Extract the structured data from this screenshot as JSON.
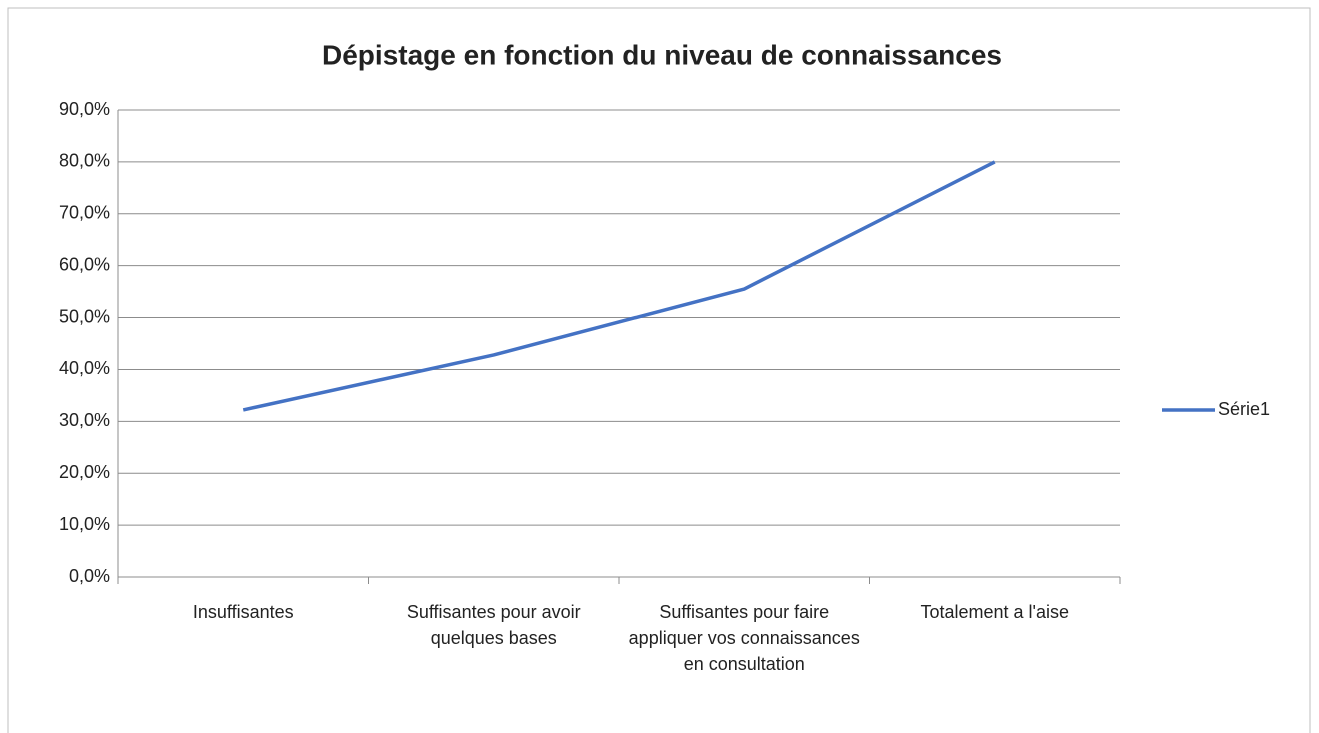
{
  "chart_data": {
    "type": "line",
    "title": "Dépistage en fonction du niveau de connaissances",
    "categories": [
      "Insuffisantes",
      "Suffisantes pour avoir quelques bases",
      "Suffisantes pour faire appliquer vos connaissances en consultation",
      "Totalement a l'aise"
    ],
    "series": [
      {
        "name": "Série1",
        "color": "#4472c4",
        "values": [
          32.2,
          42.8,
          55.5,
          80.0
        ]
      }
    ],
    "ylim": [
      0,
      90
    ],
    "yticks": [
      {
        "value": 0,
        "label": "0,0%"
      },
      {
        "value": 10,
        "label": "10,0%"
      },
      {
        "value": 20,
        "label": "20,0%"
      },
      {
        "value": 30,
        "label": "30,0%"
      },
      {
        "value": 40,
        "label": "40,0%"
      },
      {
        "value": 50,
        "label": "50,0%"
      },
      {
        "value": 60,
        "label": "60,0%"
      },
      {
        "value": 70,
        "label": "70,0%"
      },
      {
        "value": 80,
        "label": "80,0%"
      },
      {
        "value": 90,
        "label": "90,0%"
      }
    ],
    "grid": true,
    "legend": "right"
  }
}
